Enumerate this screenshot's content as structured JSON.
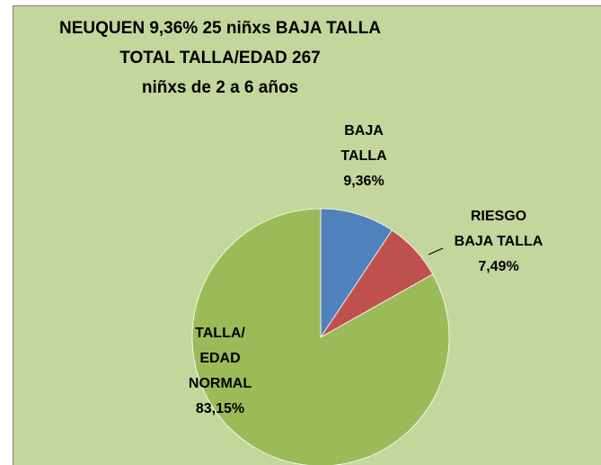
{
  "chart_data": {
    "type": "pie",
    "title": [
      "NEUQUEN  9,36%  25 niñxs BAJA TALLA",
      "TOTAL TALLA/EDAD 267",
      "niñxs de 2 a 6 años"
    ],
    "categories": [
      "BAJA\nTALLA",
      "RIESGO\nBAJA TALLA",
      "TALLA/\nEDAD\nNORMAL"
    ],
    "values": [
      9.36,
      7.49,
      83.15
    ],
    "value_labels": [
      "9,36%",
      "7,49%",
      "83,15%"
    ],
    "colors": [
      "#4f81bd",
      "#c0504d",
      "#9bbb59"
    ]
  }
}
